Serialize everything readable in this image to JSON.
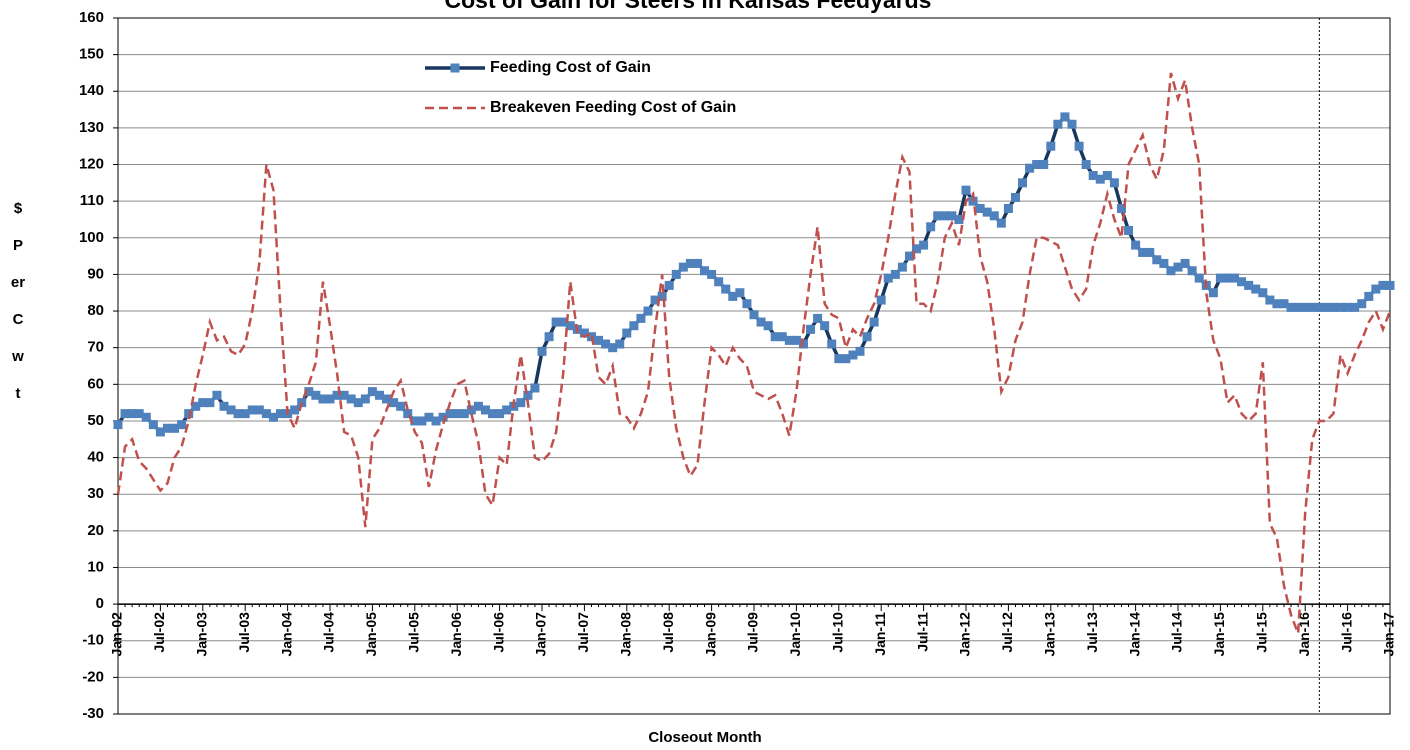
{
  "chart_data": {
    "type": "line",
    "title": "Cost of Gain for Steers in Kansas Feedyards",
    "x_label": "Closeout Month",
    "y_label": "$ Per Cwt",
    "categories": [
      "Jan-02",
      null,
      null,
      null,
      null,
      null,
      "Jul-02",
      null,
      null,
      null,
      null,
      null,
      "Jan-03",
      null,
      null,
      null,
      null,
      null,
      "Jul-03",
      null,
      null,
      null,
      null,
      null,
      "Jan-04",
      null,
      null,
      null,
      null,
      null,
      "Jul-04",
      null,
      null,
      null,
      null,
      null,
      "Jan-05",
      null,
      null,
      null,
      null,
      null,
      "Jul-05",
      null,
      null,
      null,
      null,
      null,
      "Jan-06",
      null,
      null,
      null,
      null,
      null,
      "Jul-06",
      null,
      null,
      null,
      null,
      null,
      "Jan-07",
      null,
      null,
      null,
      null,
      null,
      "Jul-07",
      null,
      null,
      null,
      null,
      null,
      "Jan-08",
      null,
      null,
      null,
      null,
      null,
      "Jul-08",
      null,
      null,
      null,
      null,
      null,
      "Jan-09",
      null,
      null,
      null,
      null,
      null,
      "Jul-09",
      null,
      null,
      null,
      null,
      null,
      "Jan-10",
      null,
      null,
      null,
      null,
      null,
      "Jul-10",
      null,
      null,
      null,
      null,
      null,
      "Jan-11",
      null,
      null,
      null,
      null,
      null,
      "Jul-11",
      null,
      null,
      null,
      null,
      null,
      "Jan-12",
      null,
      null,
      null,
      null,
      null,
      "Jul-12",
      null,
      null,
      null,
      null,
      null,
      "Jan-13",
      null,
      null,
      null,
      null,
      null,
      "Jul-13",
      null,
      null,
      null,
      null,
      null,
      "Jan-14",
      null,
      null,
      null,
      null,
      null,
      "Jul-14",
      null,
      null,
      null,
      null,
      null,
      "Jan-15",
      null,
      null,
      null,
      null,
      null,
      "Jul-15",
      null,
      null,
      null,
      null,
      null,
      "Jan-16",
      null,
      null,
      null,
      null,
      null,
      "Jul-16",
      null,
      null,
      null,
      null,
      null,
      "Jan-17"
    ],
    "series": [
      {
        "name": "Feeding Cost of Gain",
        "color": "#17375e",
        "marker_color": "#4f81bd",
        "marker": "square",
        "dash": false,
        "values": [
          49,
          52,
          52,
          52,
          51,
          49,
          47,
          48,
          48,
          49,
          52,
          54,
          55,
          55,
          57,
          54,
          53,
          52,
          52,
          53,
          53,
          52,
          51,
          52,
          52,
          53,
          55,
          58,
          57,
          56,
          56,
          57,
          57,
          56,
          55,
          56,
          58,
          57,
          56,
          55,
          54,
          52,
          50,
          50,
          51,
          50,
          51,
          52,
          52,
          52,
          53,
          54,
          53,
          52,
          52,
          53,
          54,
          55,
          57,
          59,
          69,
          73,
          77,
          77,
          76,
          75,
          74,
          73,
          72,
          71,
          70,
          71,
          74,
          76,
          78,
          80,
          83,
          84,
          87,
          90,
          92,
          93,
          93,
          91,
          90,
          88,
          86,
          84,
          85,
          82,
          79,
          77,
          76,
          73,
          73,
          72,
          72,
          71,
          75,
          78,
          76,
          71,
          67,
          67,
          68,
          69,
          73,
          77,
          83,
          89,
          90,
          92,
          95,
          97,
          98,
          103,
          106,
          106,
          106,
          105,
          113,
          110,
          108,
          107,
          106,
          104,
          108,
          111,
          115,
          119,
          120,
          120,
          125,
          131,
          133,
          131,
          125,
          120,
          117,
          116,
          117,
          115,
          108,
          102,
          98,
          96,
          96,
          94,
          93,
          91,
          92,
          93,
          91,
          89,
          87,
          85,
          89,
          89,
          89,
          88,
          87,
          86,
          85,
          83,
          82,
          82,
          81,
          81,
          81,
          81,
          81,
          81,
          81,
          81,
          81,
          81,
          82,
          84,
          86,
          87,
          87
        ]
      },
      {
        "name": "Breakeven Feeding Cost of Gain",
        "color": "#c0504d",
        "dash": true,
        "values": [
          30,
          43,
          45,
          39,
          37,
          34,
          31,
          33,
          40,
          43,
          50,
          60,
          68,
          77,
          72,
          73,
          69,
          68,
          71,
          80,
          93,
          120,
          113,
          80,
          52,
          48,
          55,
          60,
          66,
          88,
          76,
          63,
          47,
          46,
          40,
          21,
          45,
          48,
          53,
          58,
          61,
          53,
          47,
          44,
          32,
          42,
          49,
          55,
          60,
          61,
          52,
          44,
          30,
          27,
          40,
          38,
          55,
          68,
          55,
          40,
          39,
          41,
          47,
          63,
          88,
          74,
          73,
          74,
          62,
          60,
          65,
          52,
          51,
          48,
          52,
          58,
          75,
          90,
          62,
          48,
          40,
          35,
          38,
          55,
          70,
          68,
          65,
          70,
          67,
          65,
          58,
          57,
          56,
          57,
          52,
          46,
          58,
          75,
          90,
          103,
          82,
          79,
          78,
          70,
          75,
          73,
          78,
          82,
          90,
          100,
          112,
          122,
          118,
          82,
          82,
          80,
          88,
          100,
          104,
          98,
          110,
          112,
          95,
          88,
          75,
          58,
          62,
          72,
          77,
          90,
          100,
          100,
          99,
          98,
          92,
          86,
          83,
          86,
          98,
          104,
          112,
          105,
          100,
          120,
          124,
          128,
          120,
          116,
          124,
          145,
          138,
          143,
          130,
          120,
          85,
          72,
          67,
          55,
          57,
          52,
          50,
          52,
          66,
          22,
          18,
          5,
          -3,
          -8,
          25,
          45,
          50,
          50,
          52,
          68,
          63,
          68,
          72,
          77,
          80,
          75,
          80
        ]
      }
    ],
    "ylim": [
      -30,
      160
    ],
    "yticks": [
      -30,
      -20,
      -10,
      0,
      10,
      20,
      30,
      40,
      50,
      60,
      70,
      80,
      90,
      100,
      110,
      120,
      130,
      140,
      150,
      160
    ],
    "grid": true,
    "legend": "top"
  }
}
